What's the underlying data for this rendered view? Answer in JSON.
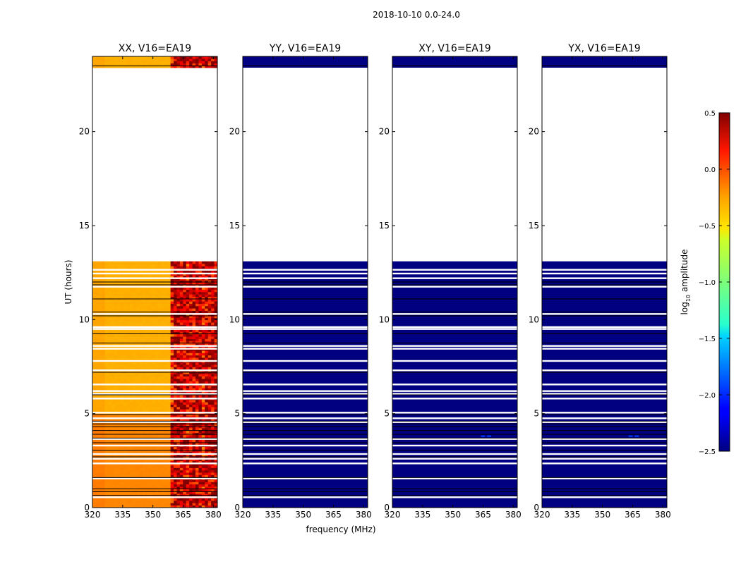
{
  "figure": {
    "suptitle": "2018-10-10 0.0-24.0"
  },
  "chart_data": {
    "type": "heatmap",
    "title": "2018-10-10 0.0-24.0",
    "xlabel": "frequency (MHz)",
    "ylabel": "UT (hours)",
    "xlim": [
      320,
      382
    ],
    "ylim": [
      0,
      24
    ],
    "x_ticks": [
      320,
      335,
      350,
      365,
      380
    ],
    "y_ticks": [
      0,
      5,
      10,
      15,
      20
    ],
    "panels": [
      {
        "title": "XX, V16=EA19",
        "level_low": -0.4,
        "level_high": 0.3,
        "blue_blobs": []
      },
      {
        "title": "YY, V16=EA19",
        "level_low": -2.5,
        "level_high": -2.5,
        "blue_blobs": []
      },
      {
        "title": "XY, V16=EA19",
        "level_low": -2.5,
        "level_high": -2.5,
        "blue_blobs": [
          {
            "freq": 365,
            "ut": 3.8
          },
          {
            "freq": 368,
            "ut": 3.8
          }
        ]
      },
      {
        "title": "YX, V16=EA19",
        "level_low": -2.5,
        "level_high": -2.5,
        "blue_blobs": [
          {
            "freq": 364,
            "ut": 3.8
          },
          {
            "freq": 367,
            "ut": 3.8
          }
        ]
      }
    ],
    "data_segments_ut": [
      [
        0,
        13.1
      ],
      [
        23.4,
        24.0
      ]
    ],
    "white_gap_rows_ut": [
      0.55,
      1.55,
      2.35,
      2.6,
      2.85,
      3.3,
      3.65,
      4.55,
      4.75,
      5.05,
      5.8,
      6.05,
      6.2,
      6.55,
      7.3,
      7.8,
      8.45,
      8.6,
      9.5,
      9.6,
      10.3,
      11.75,
      12.2,
      12.45,
      12.65
    ],
    "black_line_rows_ut": [
      0.65,
      0.85,
      1.0,
      1.6,
      2.7,
      3.05,
      3.45,
      3.7,
      3.9,
      4.1,
      4.3,
      4.45,
      4.6,
      4.95,
      6.0,
      7.2,
      8.75,
      9.25,
      10.2,
      10.4,
      11.1,
      11.85,
      12.0,
      23.5
    ],
    "colorbar": {
      "label": "log10 amplitude",
      "label_main": "log",
      "label_sub": "10",
      "label_rest": " amplitude",
      "range": [
        -2.5,
        0.5
      ],
      "ticks": [
        0.5,
        0.0,
        -0.5,
        -1.0,
        -1.5,
        -2.0,
        -2.5
      ],
      "tick_labels": [
        "0.5",
        "0.0",
        "−0.5",
        "−1.0",
        "−1.5",
        "−2.0",
        "−2.5"
      ]
    }
  }
}
